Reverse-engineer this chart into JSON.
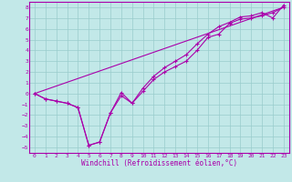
{
  "title": "",
  "xlabel": "Windchill (Refroidissement éolien,°C)",
  "ylabel": "",
  "bg_color": "#c2e8e8",
  "grid_color": "#99cccc",
  "line_color": "#aa00aa",
  "spine_color": "#aa00aa",
  "xlim": [
    -0.5,
    23.5
  ],
  "ylim": [
    -5.5,
    8.5
  ],
  "xticks": [
    0,
    1,
    2,
    3,
    4,
    5,
    6,
    7,
    8,
    9,
    10,
    11,
    12,
    13,
    14,
    15,
    16,
    17,
    18,
    19,
    20,
    21,
    22,
    23
  ],
  "yticks": [
    -5,
    -4,
    -3,
    -2,
    -1,
    0,
    1,
    2,
    3,
    4,
    5,
    6,
    7,
    8
  ],
  "line1_x": [
    0,
    1,
    2,
    3,
    4,
    5,
    6,
    7,
    8,
    9,
    10,
    11,
    12,
    13,
    14,
    15,
    16,
    17,
    18,
    19,
    20,
    21,
    22,
    23
  ],
  "line1_y": [
    0.0,
    -0.5,
    -0.7,
    -0.9,
    -1.3,
    -4.8,
    -4.5,
    -1.8,
    -0.2,
    -0.9,
    0.2,
    1.3,
    2.0,
    2.5,
    3.0,
    4.0,
    5.2,
    5.5,
    6.5,
    6.9,
    7.0,
    7.2,
    7.5,
    8.0
  ],
  "line2_x": [
    0,
    1,
    2,
    3,
    4,
    5,
    6,
    7,
    8,
    9,
    10,
    11,
    12,
    13,
    14,
    15,
    16,
    17,
    18,
    19,
    20,
    21,
    22,
    23
  ],
  "line2_y": [
    0.0,
    -0.5,
    -0.7,
    -0.9,
    -1.3,
    -4.8,
    -4.5,
    -1.8,
    0.1,
    -0.9,
    0.5,
    1.6,
    2.4,
    3.0,
    3.6,
    4.6,
    5.5,
    6.2,
    6.6,
    7.1,
    7.2,
    7.5,
    7.0,
    8.2
  ],
  "line3_x": [
    0,
    23
  ],
  "line3_y": [
    0.0,
    8.0
  ]
}
